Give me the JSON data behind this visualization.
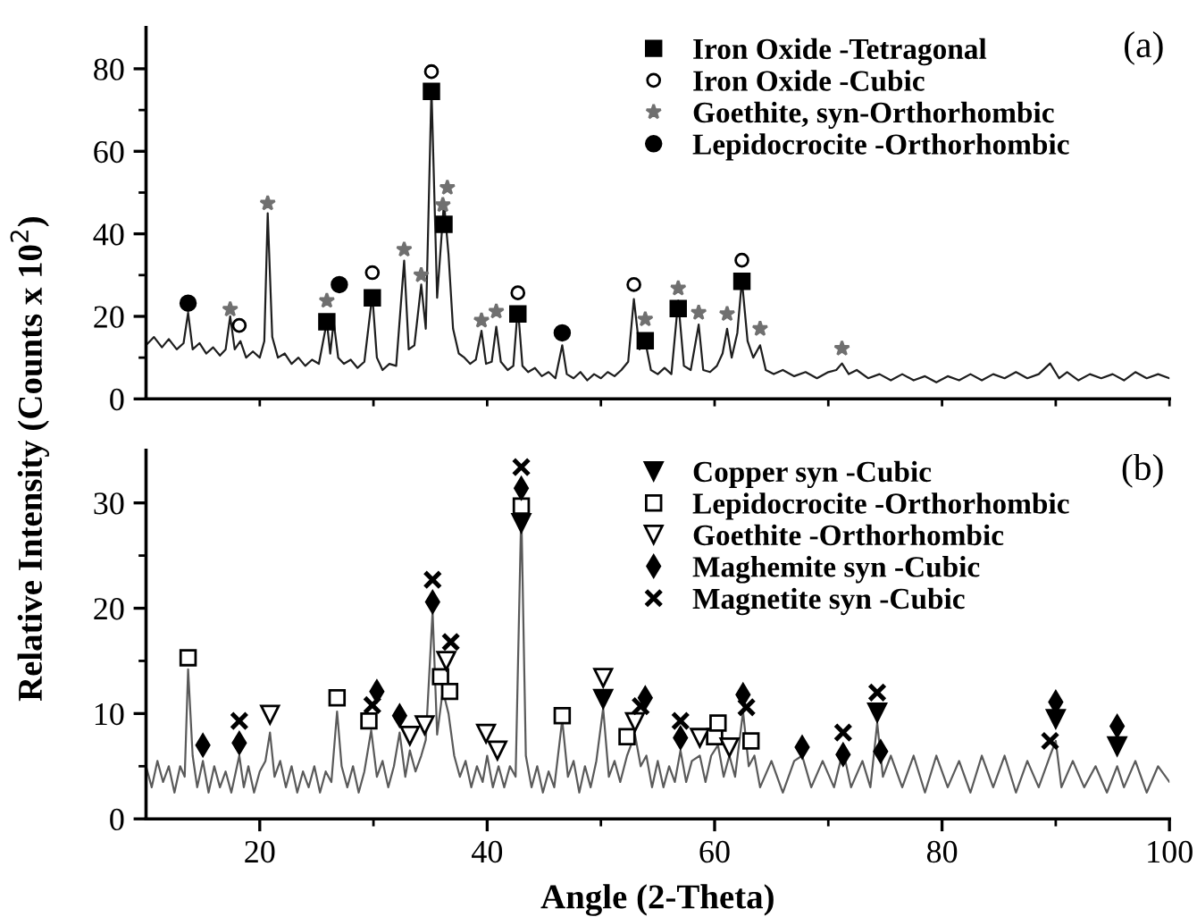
{
  "chart_data": [
    {
      "type": "line",
      "ylabel": "Relative Intensity (Counts x 10$^{2}$)",
      "annotations": [
        "(a)"
      ],
      "legend": "top right",
      "tick_labels": "y",
      "xlim": [
        10,
        100
      ],
      "xticks": [
        {
          "value": 20,
          "label": null
        },
        {
          "value": 30,
          "label": null
        },
        {
          "value": 40,
          "label": null
        },
        {
          "value": 50,
          "label": null
        },
        {
          "value": 60,
          "label": null
        },
        {
          "value": 70,
          "label": null
        },
        {
          "value": 80,
          "label": null
        },
        {
          "value": 90,
          "label": null
        },
        {
          "value": 100,
          "label": null
        }
      ],
      "ylim": [
        0,
        90
      ],
      "yticks": [
        0,
        {
          "value": 10,
          "label": null
        },
        20,
        {
          "value": 30,
          "label": null
        },
        40,
        {
          "value": 50,
          "label": null
        },
        60,
        {
          "value": 70,
          "label": null
        },
        80
      ],
      "series": [
        {
          "type": "line",
          "color": "#1e1e1e",
          "line_style": "solid",
          "marker": "none",
          "x": [
            10,
            10.7,
            11.4,
            12,
            12.7,
            13.3,
            13.7,
            14.1,
            14.7,
            15.3,
            15.9,
            16.5,
            17.0,
            17.4,
            17.8,
            18.3,
            18.8,
            19.4,
            20.0,
            20.4,
            20.7,
            21.1,
            21.6,
            22.2,
            22.8,
            23.4,
            24.0,
            24.6,
            25.2,
            25.9,
            26.2,
            26.5,
            26.9,
            27.4,
            28.0,
            28.6,
            29.2,
            29.9,
            30.3,
            30.8,
            31.4,
            32.0,
            32.7,
            33.1,
            33.6,
            34.2,
            34.6,
            35.1,
            35.6,
            36.2,
            36.6,
            37.0,
            37.5,
            38.0,
            38.5,
            39.0,
            39.5,
            39.9,
            40.4,
            40.8,
            41.2,
            41.8,
            42.3,
            42.7,
            43.1,
            43.6,
            44.2,
            44.8,
            45.4,
            46.0,
            46.6,
            47.0,
            47.6,
            48.2,
            48.8,
            49.4,
            50.0,
            50.6,
            51.2,
            51.8,
            52.4,
            52.9,
            53.4,
            53.9,
            54.4,
            55.0,
            55.6,
            56.2,
            56.8,
            57.3,
            57.9,
            58.6,
            59.0,
            59.6,
            60.2,
            60.7,
            61.1,
            61.5,
            62.0,
            62.4,
            62.9,
            63.4,
            64.0,
            64.5,
            65.2,
            66,
            67,
            68,
            69,
            70,
            70.7,
            71.2,
            71.8,
            72.5,
            73.5,
            74.5,
            75.5,
            76.5,
            77.5,
            78.5,
            79.5,
            80.5,
            81.5,
            82.5,
            83.5,
            84.5,
            85.5,
            86.5,
            87.5,
            88.5,
            89.5,
            90.3,
            91,
            92,
            93,
            94,
            95,
            96,
            97,
            98,
            99,
            100
          ],
          "values": [
            13,
            15,
            12.5,
            14.5,
            12,
            13.5,
            20.9,
            12,
            13.5,
            11,
            12.5,
            10.5,
            12,
            20,
            12,
            14,
            10,
            11.5,
            10,
            14,
            45,
            15,
            10,
            11,
            8.5,
            10,
            8,
            9.5,
            8.5,
            18.7,
            11,
            18.7,
            10,
            8.5,
            9.5,
            7.5,
            9,
            25.2,
            10,
            7,
            8.5,
            8,
            33.5,
            12,
            13,
            27.7,
            17,
            75.2,
            24.5,
            47.7,
            35,
            17,
            11,
            10,
            8.5,
            9.5,
            16.5,
            8.5,
            9,
            17.5,
            9,
            7,
            8,
            22.3,
            8,
            6.5,
            7.5,
            5.5,
            6.5,
            5,
            13,
            6,
            5,
            6.5,
            4.5,
            6,
            5,
            6.5,
            5.5,
            7,
            9,
            24.2,
            12,
            14,
            7,
            6,
            7.5,
            6,
            23.8,
            8,
            7,
            18,
            7,
            6.5,
            8,
            11,
            17,
            10,
            16,
            28.8,
            14,
            10,
            13,
            7,
            6,
            7,
            5.5,
            6.5,
            5,
            6.5,
            7,
            8.6,
            6,
            7,
            5,
            6,
            4.5,
            6,
            4.5,
            5.5,
            4,
            5.5,
            4.5,
            6,
            4.5,
            6,
            5,
            6.5,
            5,
            6,
            8.6,
            5,
            6.5,
            4.5,
            6,
            5,
            6,
            4.5,
            6.5,
            5,
            6,
            5
          ]
        },
        {
          "type": "scatter",
          "name": "Iron Oxide -Tetragonal",
          "marker": "square",
          "color": "#000000",
          "x": [
            25.9,
            29.9,
            35.1,
            36.2,
            42.7,
            53.9,
            56.8,
            62.4
          ],
          "values": [
            18.7,
            24.5,
            74.5,
            42.3,
            20.6,
            14.1,
            21.9,
            28.5
          ]
        },
        {
          "type": "scatter",
          "name": "Iron Oxide -Cubic",
          "marker": "circle-open",
          "color": "#000000",
          "x": [
            18.2,
            29.9,
            35.1,
            42.7,
            52.9,
            62.4
          ],
          "values": [
            17.8,
            30.6,
            79.3,
            25.7,
            27.7,
            33.6
          ]
        },
        {
          "type": "scatter",
          "name": "Goethite, syn-Orthorhombic",
          "marker": "star",
          "color": "#707070",
          "x": [
            17.4,
            20.7,
            25.9,
            32.7,
            34.2,
            36.1,
            36.5,
            39.5,
            40.8,
            53.9,
            56.8,
            58.6,
            61.1,
            64,
            71.2
          ],
          "values": [
            21.7,
            47.4,
            23.8,
            36.2,
            30,
            47,
            51.2,
            19,
            21.2,
            19.3,
            26.8,
            20.9,
            20.6,
            17,
            12.2
          ]
        },
        {
          "type": "scatter",
          "name": "Lepidocrocite -Orthorhombic",
          "marker": "circle",
          "color": "#000000",
          "x": [
            13.7,
            27.0,
            46.6
          ],
          "values": [
            23.2,
            27.7,
            16
          ]
        }
      ]
    },
    {
      "type": "line",
      "xlabel": "Angle (2-Theta)",
      "annotations": [
        "(b)"
      ],
      "legend": "top right",
      "xlim": [
        10,
        100
      ],
      "xticks": [
        20,
        {
          "value": 30,
          "label": null
        },
        40,
        {
          "value": 50,
          "label": null
        },
        60,
        {
          "value": 70,
          "label": null
        },
        80,
        {
          "value": 90,
          "label": null
        },
        100
      ],
      "ylim": [
        0,
        35
      ],
      "yticks": [
        0,
        {
          "value": 5,
          "label": null
        },
        10,
        {
          "value": 15,
          "label": null
        },
        20,
        {
          "value": 25,
          "label": null
        },
        30
      ],
      "series": [
        {
          "type": "line",
          "color": "#5a5a5a",
          "line_style": "solid",
          "marker": "none",
          "x": [
            10,
            10.5,
            11,
            11.5,
            12,
            12.5,
            13,
            13.4,
            13.7,
            14.1,
            14.5,
            15.0,
            15.5,
            16,
            16.5,
            17,
            17.5,
            18,
            18.2,
            18.6,
            19,
            19.5,
            20,
            20.5,
            20.9,
            21.3,
            21.8,
            22.3,
            22.8,
            23.3,
            23.8,
            24.3,
            24.8,
            25.3,
            25.8,
            26.3,
            26.8,
            27.2,
            27.7,
            28.2,
            28.7,
            29.2,
            29.8,
            30.3,
            30.8,
            31.3,
            31.8,
            32.3,
            32.8,
            33.2,
            33.7,
            34.2,
            34.6,
            35.2,
            35.6,
            36.1,
            36.6,
            37.1,
            37.6,
            38.1,
            38.6,
            39.1,
            39.6,
            40.0,
            40.5,
            41.0,
            41.5,
            42.0,
            42.5,
            43.0,
            43.4,
            43.9,
            44.4,
            44.9,
            45.4,
            45.9,
            46.6,
            47.1,
            47.6,
            48.1,
            48.6,
            49.1,
            49.6,
            50.2,
            50.7,
            51.2,
            51.7,
            52.3,
            53.0,
            53.5,
            54,
            54.5,
            55,
            55.5,
            56,
            56.5,
            57.0,
            57.5,
            58,
            58.7,
            59.2,
            59.7,
            60.3,
            60.8,
            61.3,
            61.8,
            62.5,
            63.0,
            63.5,
            64,
            65,
            66,
            67,
            67.7,
            68.5,
            69.5,
            70.5,
            71.3,
            72,
            73,
            73.7,
            74.3,
            74.8,
            75.5,
            76.5,
            77.5,
            78.5,
            79.5,
            80.5,
            81.5,
            82.5,
            83.5,
            84.5,
            85.5,
            86.5,
            87.5,
            88.5,
            89.5,
            90.0,
            90.5,
            91.5,
            92.5,
            93.5,
            94.5,
            95.4,
            96,
            97,
            98,
            99,
            100
          ],
          "values": [
            5,
            3,
            5.5,
            3.5,
            5,
            2.5,
            5,
            4,
            14.2,
            6,
            3,
            5.5,
            2.5,
            5,
            3,
            4.5,
            2.5,
            5,
            6,
            3,
            5,
            2.5,
            4.5,
            5.5,
            8.2,
            4,
            5.5,
            3,
            5,
            2.5,
            4.5,
            3,
            5,
            2.5,
            4.5,
            3.5,
            10.2,
            5,
            3,
            5,
            2.5,
            4.5,
            8.4,
            4,
            5.5,
            3,
            5,
            8.2,
            4,
            6.5,
            4.5,
            6,
            7.5,
            19.7,
            8,
            12.2,
            10,
            6,
            4,
            5.5,
            3,
            5,
            3.5,
            6,
            3,
            5,
            3,
            5,
            4,
            29.4,
            6,
            3,
            5,
            2.5,
            4.5,
            3,
            9.4,
            4,
            5.5,
            2.5,
            5,
            3,
            5.5,
            10.5,
            4,
            5.5,
            3.5,
            6,
            8,
            5,
            6,
            3,
            5.5,
            3,
            5,
            3.5,
            6.5,
            3.5,
            5.5,
            6,
            3.5,
            6,
            7,
            4,
            6,
            4,
            10.2,
            5,
            6,
            3,
            5.5,
            2.5,
            5.5,
            6,
            3,
            5.5,
            3,
            6.5,
            3,
            5.5,
            3,
            9.1,
            4,
            6,
            3,
            6,
            2.5,
            6,
            3,
            5.5,
            2.5,
            6,
            3,
            6,
            2.5,
            5.5,
            3,
            6,
            7.4,
            3,
            5.5,
            3,
            5,
            2.5,
            5,
            3,
            5.5,
            2.5,
            5,
            3.5
          ]
        },
        {
          "type": "scatter",
          "name": "Copper syn -Cubic",
          "marker": "triangle-down",
          "color": "#000000",
          "x": [
            43.0,
            50.2,
            74.3,
            90.0,
            95.4
          ],
          "values": [
            28.1,
            11.4,
            10.1,
            9.5,
            6.9
          ]
        },
        {
          "type": "scatter",
          "name": "Lepidocrocite -Orthorhombic",
          "marker": "square-open",
          "color": "#000000",
          "x": [
            13.7,
            26.8,
            29.6,
            35.9,
            36.7,
            43.0,
            46.6,
            52.3,
            60.0,
            60.3,
            63.2
          ],
          "values": [
            15.3,
            11.5,
            9.3,
            13.5,
            12.1,
            29.7,
            9.8,
            7.8,
            7.8,
            9.1,
            7.4
          ]
        },
        {
          "type": "scatter",
          "name": "Goethite -Orthorhombic",
          "marker": "triangle-down-open",
          "color": "#000000",
          "x": [
            20.9,
            33.2,
            34.5,
            36.4,
            39.9,
            40.9,
            50.2,
            53.0,
            58.7,
            61.3
          ],
          "values": [
            9.9,
            7.9,
            8.9,
            15,
            8.1,
            6.5,
            13.4,
            9.2,
            7.7,
            6.8
          ]
        },
        {
          "type": "scatter",
          "name": "Maghemite syn -Cubic",
          "marker": "diamond",
          "color": "#000000",
          "x": [
            15.0,
            18.2,
            30.3,
            32.3,
            35.2,
            43.0,
            53.9,
            57.0,
            62.5,
            67.7,
            71.3,
            74.6,
            90.0,
            95.4
          ],
          "values": [
            7.0,
            7.2,
            12.1,
            9.8,
            20.6,
            31.4,
            11.5,
            7.7,
            11.8,
            6.8,
            6.1,
            6.4,
            11.1,
            8.8
          ]
        },
        {
          "type": "scatter",
          "name": "Magnetite syn -Cubic",
          "marker": "cross",
          "color": "#000000",
          "x": [
            18.2,
            29.9,
            35.2,
            36.8,
            43.0,
            53.5,
            57.0,
            62.8,
            71.3,
            74.3,
            89.5
          ],
          "values": [
            9.3,
            10.8,
            22.7,
            16.8,
            33.4,
            10.7,
            9.3,
            10.6,
            8.2,
            12,
            7.4
          ]
        }
      ]
    }
  ]
}
